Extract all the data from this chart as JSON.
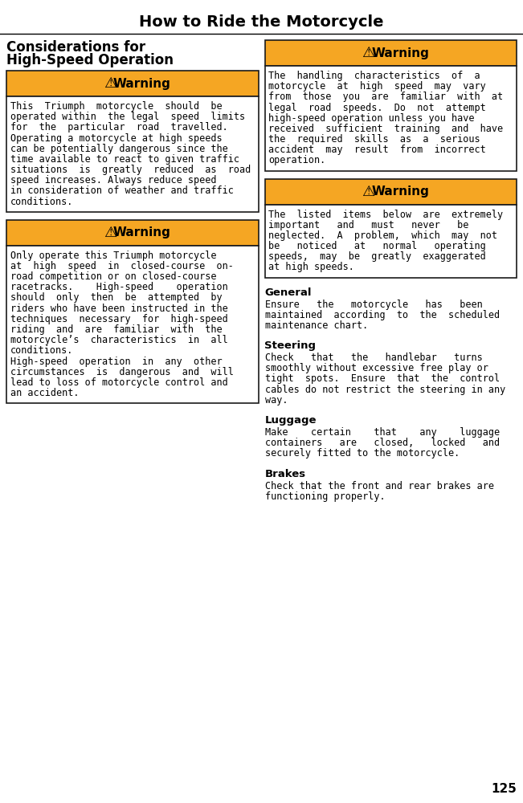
{
  "title": "How to Ride the Motorcycle",
  "page_number": "125",
  "bg_color": "#ffffff",
  "orange_color": "#F5A623",
  "box_border_color": "#1a1a1a",
  "left_heading_line1": "Considerations for",
  "left_heading_line2": "High-Speed Operation",
  "warning1_lines": [
    "This  Triumph  motorcycle  should  be",
    "operated within  the legal  speed  limits",
    "for  the  particular  road  travelled.",
    "Operating a motorcycle at high speeds",
    "can be potentially dangerous since the",
    "time available to react to given traffic",
    "situations  is  greatly  reduced  as  road",
    "speed increases. Always reduce speed",
    "in consideration of weather and traffic",
    "conditions."
  ],
  "warning2_lines": [
    "Only operate this Triumph motorcycle",
    "at  high  speed  in  closed-course  on-",
    "road competition or on closed-course",
    "racetracks.    High-speed    operation",
    "should  only  then  be  attempted  by",
    "riders who have been instructed in the",
    "techniques  necessary  for  high-speed",
    "riding  and  are  familiar  with  the",
    "motorcycle’s  characteristics  in  all",
    "conditions.",
    "High-speed  operation  in  any  other",
    "circumstances  is  dangerous  and  will",
    "lead to loss of motorcycle control and",
    "an accident."
  ],
  "warning3_lines": [
    "The  handling  characteristics  of  a",
    "motorcycle  at  high  speed  may  vary",
    "from  those  you  are  familiar  with  at",
    "legal  road  speeds.  Do  not  attempt",
    "high-speed operation unless you have",
    "received  sufficient  training  and  have",
    "the  required  skills  as  a  serious",
    "accident  may  result  from  incorrect",
    "operation."
  ],
  "warning4_lines": [
    "The  listed  items  below  are  extremely",
    "important   and   must   never   be",
    "neglected.  A  problem,  which  may  not",
    "be   noticed   at   normal   operating",
    "speeds,  may  be  greatly  exaggerated",
    "at high speeds."
  ],
  "general_title": "General",
  "general_lines": [
    "Ensure   the   motorcycle   has   been",
    "maintained  according  to  the  scheduled",
    "maintenance chart."
  ],
  "steering_title": "Steering",
  "steering_lines": [
    "Check   that   the   handlebar   turns",
    "smoothly without excessive free play or",
    "tight  spots.  Ensure  that  the  control",
    "cables do not restrict the steering in any",
    "way."
  ],
  "luggage_title": "Luggage",
  "luggage_lines": [
    "Make    certain    that    any    luggage",
    "containers   are   closed,   locked   and",
    "securely fitted to the motorcycle."
  ],
  "brakes_title": "Brakes",
  "brakes_lines": [
    "Check that the front and rear brakes are",
    "functioning properly."
  ],
  "title_fontsize": 14,
  "heading_fontsize": 12,
  "section_title_fontsize": 9.5,
  "body_fontsize": 8.5,
  "warning_label_fontsize": 11
}
